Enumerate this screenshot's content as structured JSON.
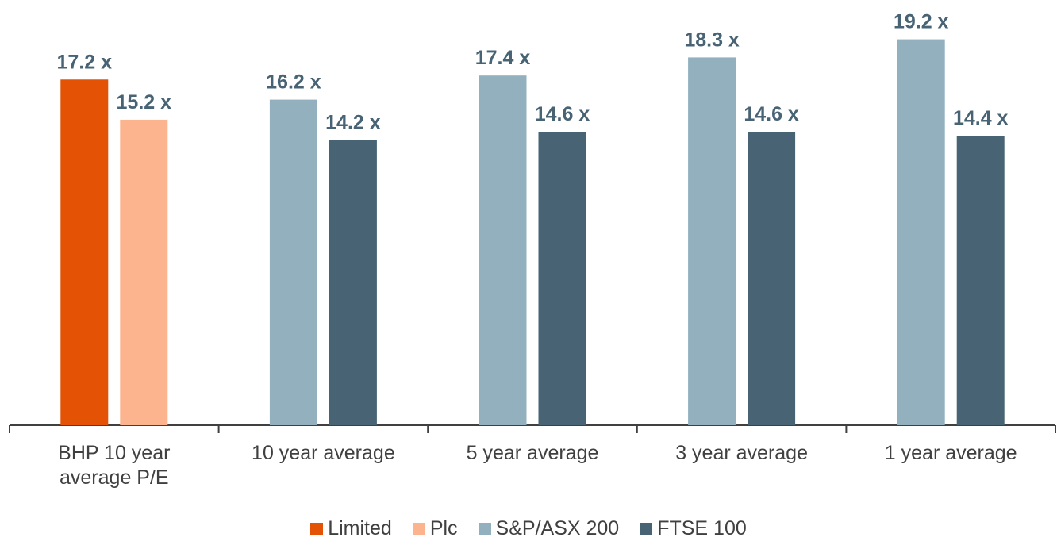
{
  "chart_data": {
    "type": "bar",
    "categories": [
      "BHP 10 year average P/E",
      "10 year average",
      "5 year average",
      "3 year average",
      "1 year average"
    ],
    "series": [
      {
        "name": "Limited",
        "color": "#e35205",
        "values": [
          17.2,
          null,
          null,
          null,
          null
        ],
        "value_labels": [
          "17.2 x",
          null,
          null,
          null,
          null
        ]
      },
      {
        "name": "Plc",
        "color": "#fcb48f",
        "values": [
          15.2,
          null,
          null,
          null,
          null
        ],
        "value_labels": [
          "15.2 x",
          null,
          null,
          null,
          null
        ]
      },
      {
        "name": "S&P/ASX 200",
        "color": "#92b0be",
        "values": [
          null,
          16.2,
          17.4,
          18.3,
          19.2
        ],
        "value_labels": [
          null,
          "16.2 x",
          "17.4 x",
          "18.3 x",
          "19.2 x"
        ]
      },
      {
        "name": "FTSE 100",
        "color": "#476374",
        "values": [
          null,
          14.2,
          14.6,
          14.6,
          14.4
        ],
        "value_labels": [
          null,
          "14.2 x",
          "14.6 x",
          "14.6 x",
          "14.4 x"
        ]
      }
    ],
    "ylim": [
      0,
      21
    ]
  }
}
